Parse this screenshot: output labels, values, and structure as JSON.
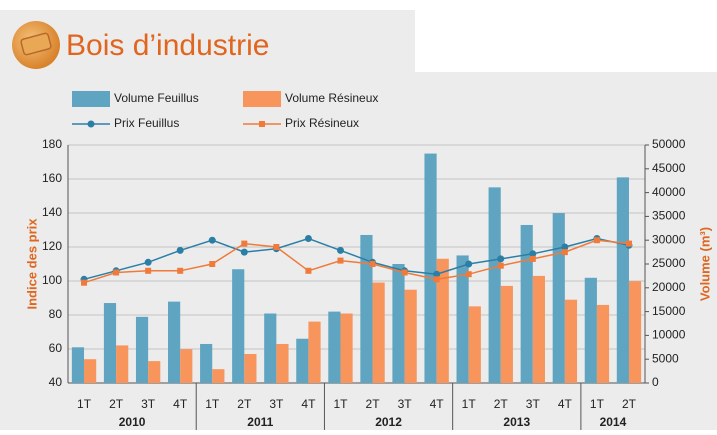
{
  "chart_data": {
    "type": "bar-line",
    "title": "Bois d’industrie",
    "y_label": "Indice des prix",
    "y2_label": "Volume (m³)",
    "categories": [
      "1T",
      "2T",
      "3T",
      "4T",
      "1T",
      "2T",
      "3T",
      "4T",
      "1T",
      "2T",
      "3T",
      "4T",
      "1T",
      "2T",
      "3T",
      "4T",
      "1T",
      "2T"
    ],
    "category_years": [
      "2010",
      "2010",
      "2010",
      "2010",
      "2011",
      "2011",
      "2011",
      "2011",
      "2012",
      "2012",
      "2012",
      "2012",
      "2013",
      "2013",
      "2013",
      "2013",
      "2014",
      "2014"
    ],
    "ylim": [
      40,
      180
    ],
    "yticks": [
      40,
      60,
      80,
      100,
      120,
      140,
      160,
      180
    ],
    "y2lim": [
      0,
      50000
    ],
    "y2ticks": [
      0,
      5000,
      10000,
      15000,
      20000,
      25000,
      30000,
      35000,
      40000,
      45000,
      50000
    ],
    "grid": true,
    "series": [
      {
        "name": "Volume Feuillus",
        "kind": "bar",
        "axis": "y2",
        "color": "#5fa5c2",
        "values": [
          7500,
          16800,
          13900,
          17100,
          8200,
          23900,
          14600,
          9300,
          15000,
          31100,
          25000,
          48200,
          26800,
          41100,
          33200,
          35700,
          22100,
          43200
        ]
      },
      {
        "name": "Volume Résineux",
        "kind": "bar",
        "axis": "y2",
        "color": "#f7955d",
        "values": [
          5000,
          7900,
          4600,
          7100,
          2900,
          6100,
          8200,
          12900,
          14600,
          21100,
          19600,
          26100,
          16100,
          20400,
          22500,
          17500,
          16400,
          21400
        ]
      },
      {
        "name": "Prix Feuillus",
        "kind": "line",
        "axis": "y",
        "color": "#2b7fa6",
        "marker": "circle",
        "values": [
          101,
          106,
          111,
          118,
          124,
          117,
          119,
          125,
          118,
          111,
          106,
          104,
          110,
          113,
          116,
          120,
          125,
          121
        ]
      },
      {
        "name": "Prix Résineux",
        "kind": "line",
        "axis": "y",
        "color": "#f07a3a",
        "marker": "square",
        "values": [
          99,
          105,
          106,
          106,
          110,
          122,
          120,
          106,
          112,
          110,
          105,
          101,
          104,
          109,
          113,
          117,
          124,
          122
        ]
      }
    ]
  }
}
